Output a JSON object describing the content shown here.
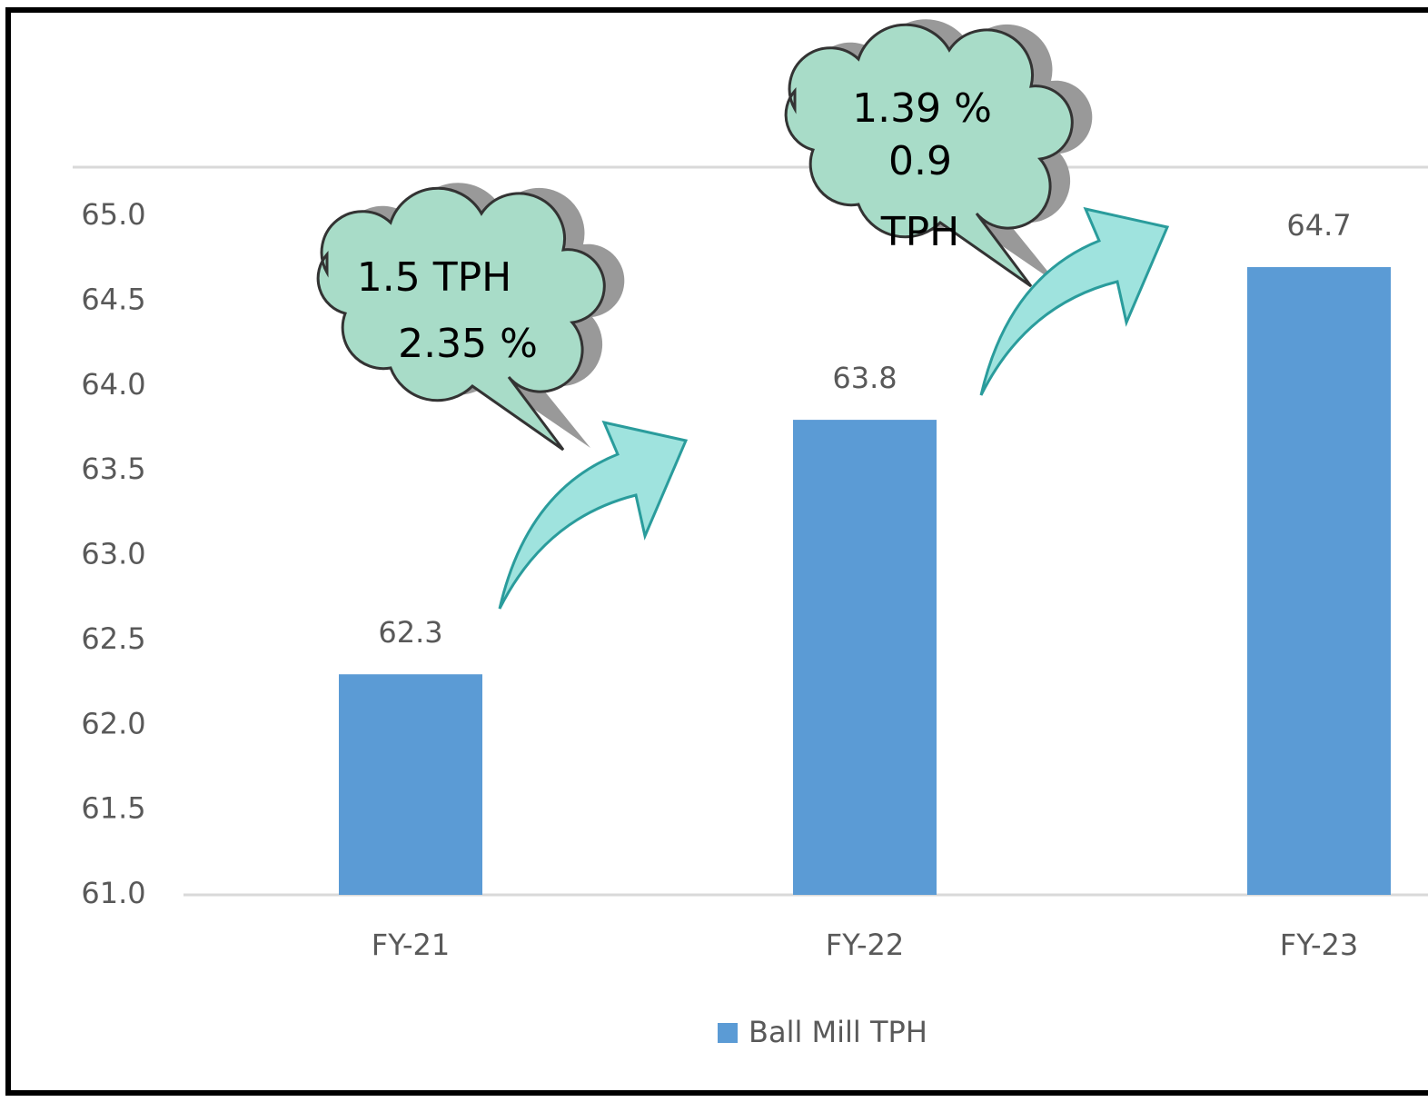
{
  "chart_data": {
    "type": "bar",
    "categories": [
      "FY-21",
      "FY-22",
      "FY-23"
    ],
    "series": [
      {
        "name": "Ball Mill TPH",
        "color": "#5b9bd5",
        "values": [
          62.3,
          63.8,
          64.7
        ]
      }
    ],
    "ylim": [
      61,
      65
    ],
    "yticks": [
      {
        "value": 61,
        "label": "61.0"
      },
      {
        "value": 61.5,
        "label": "61.5"
      },
      {
        "value": 62,
        "label": "62.0"
      },
      {
        "value": 62.5,
        "label": "62.5"
      },
      {
        "value": 63,
        "label": "63.0"
      },
      {
        "value": 63.5,
        "label": "63.5"
      },
      {
        "value": 64,
        "label": "64.0"
      },
      {
        "value": 64.5,
        "label": "64.5"
      },
      {
        "value": 65,
        "label": "65.0"
      }
    ],
    "grid": false,
    "legend": "bottom",
    "annotations": [
      "1.5 TPH",
      "2.35 %",
      "1.39 %",
      "0.9",
      "TPH"
    ]
  }
}
